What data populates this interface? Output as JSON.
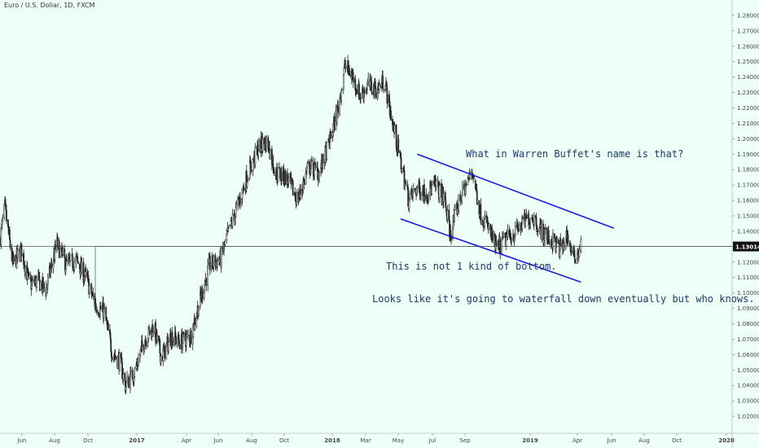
{
  "window": {
    "symbol_title": "Euro / U.S. Dollar, 1D, FXCM"
  },
  "colors": {
    "background": "#eefff7",
    "candle": "#222222",
    "channel": "#1a1adf",
    "price_line": "#333333",
    "price_label_bg": "#111111",
    "price_label_text": "#ffffff",
    "note_text": "#1a3a6e"
  },
  "annotations": {
    "note_top": "What in Warren Buffet's name is that?",
    "note_middle": "This is not 1 kind of bottom.",
    "note_bottom": "Looks like it's going to waterfall down eventually but who knows."
  },
  "chart_data": {
    "type": "candlestick",
    "title": "Euro / U.S. Dollar, 1D, FXCM",
    "xlabel": "",
    "ylabel": "",
    "ylim": [
      1.01,
      1.29
    ],
    "y_scale": "linear",
    "grid": false,
    "current_price": 1.13014,
    "current_price_label": "1.13014",
    "x_tick_labels": [
      "Jun",
      "Aug",
      "Oct",
      "2017",
      "Apr",
      "Jun",
      "Aug",
      "Oct",
      "2018",
      "Mar",
      "May",
      "Jul",
      "Sep",
      "2019",
      "Apr",
      "Jun",
      "Aug",
      "Oct",
      "2020"
    ],
    "y_tick_labels": [
      "1.02000",
      "1.03000",
      "1.04000",
      "1.05000",
      "1.06000",
      "1.07000",
      "1.08000",
      "1.09000",
      "1.10000",
      "1.11000",
      "1.12000",
      "1.13000",
      "1.14000",
      "1.15000",
      "1.16000",
      "1.17000",
      "1.18000",
      "1.19000",
      "1.20000",
      "1.21000",
      "1.22000",
      "1.23000",
      "1.24000",
      "1.25000",
      "1.26000",
      "1.27000",
      "1.28000"
    ],
    "price_path": [
      {
        "x": "2016-05-01",
        "close": 1.135
      },
      {
        "x": "2016-05-10",
        "close": 1.155
      },
      {
        "x": "2016-05-25",
        "close": 1.118
      },
      {
        "x": "2016-06-10",
        "close": 1.128
      },
      {
        "x": "2016-06-25",
        "close": 1.105
      },
      {
        "x": "2016-07-10",
        "close": 1.108
      },
      {
        "x": "2016-07-25",
        "close": 1.102
      },
      {
        "x": "2016-08-15",
        "close": 1.132
      },
      {
        "x": "2016-09-01",
        "close": 1.118
      },
      {
        "x": "2016-09-20",
        "close": 1.121
      },
      {
        "x": "2016-10-10",
        "close": 1.108
      },
      {
        "x": "2016-10-25",
        "close": 1.092
      },
      {
        "x": "2016-11-10",
        "close": 1.088
      },
      {
        "x": "2016-11-25",
        "close": 1.062
      },
      {
        "x": "2016-12-10",
        "close": 1.055
      },
      {
        "x": "2016-12-20",
        "close": 1.04
      },
      {
        "x": "2017-01-05",
        "close": 1.048
      },
      {
        "x": "2017-01-25",
        "close": 1.07
      },
      {
        "x": "2017-02-10",
        "close": 1.078
      },
      {
        "x": "2017-02-25",
        "close": 1.058
      },
      {
        "x": "2017-03-15",
        "close": 1.072
      },
      {
        "x": "2017-04-01",
        "close": 1.068
      },
      {
        "x": "2017-04-20",
        "close": 1.072
      },
      {
        "x": "2017-05-05",
        "close": 1.092
      },
      {
        "x": "2017-05-25",
        "close": 1.118
      },
      {
        "x": "2017-06-15",
        "close": 1.122
      },
      {
        "x": "2017-06-30",
        "close": 1.14
      },
      {
        "x": "2017-07-20",
        "close": 1.16
      },
      {
        "x": "2017-08-05",
        "close": 1.178
      },
      {
        "x": "2017-08-25",
        "close": 1.195
      },
      {
        "x": "2017-09-10",
        "close": 1.198
      },
      {
        "x": "2017-09-25",
        "close": 1.178
      },
      {
        "x": "2017-10-15",
        "close": 1.175
      },
      {
        "x": "2017-11-05",
        "close": 1.16
      },
      {
        "x": "2017-11-25",
        "close": 1.182
      },
      {
        "x": "2017-12-15",
        "close": 1.178
      },
      {
        "x": "2018-01-05",
        "close": 1.2
      },
      {
        "x": "2018-01-20",
        "close": 1.222
      },
      {
        "x": "2018-02-01",
        "close": 1.248
      },
      {
        "x": "2018-02-15",
        "close": 1.24
      },
      {
        "x": "2018-03-01",
        "close": 1.228
      },
      {
        "x": "2018-03-15",
        "close": 1.235
      },
      {
        "x": "2018-04-01",
        "close": 1.232
      },
      {
        "x": "2018-04-15",
        "close": 1.238
      },
      {
        "x": "2018-04-30",
        "close": 1.21
      },
      {
        "x": "2018-05-15",
        "close": 1.185
      },
      {
        "x": "2018-05-30",
        "close": 1.16
      },
      {
        "x": "2018-06-15",
        "close": 1.168
      },
      {
        "x": "2018-07-01",
        "close": 1.165
      },
      {
        "x": "2018-07-20",
        "close": 1.17
      },
      {
        "x": "2018-08-05",
        "close": 1.16
      },
      {
        "x": "2018-08-15",
        "close": 1.138
      },
      {
        "x": "2018-09-01",
        "close": 1.16
      },
      {
        "x": "2018-09-20",
        "close": 1.175
      },
      {
        "x": "2018-09-25",
        "close": 1.18
      },
      {
        "x": "2018-10-10",
        "close": 1.152
      },
      {
        "x": "2018-10-25",
        "close": 1.142
      },
      {
        "x": "2018-11-10",
        "close": 1.128
      },
      {
        "x": "2018-11-25",
        "close": 1.135
      },
      {
        "x": "2018-12-10",
        "close": 1.138
      },
      {
        "x": "2018-12-31",
        "close": 1.146
      },
      {
        "x": "2019-01-15",
        "close": 1.15
      },
      {
        "x": "2019-02-01",
        "close": 1.14
      },
      {
        "x": "2019-02-20",
        "close": 1.134
      },
      {
        "x": "2019-03-10",
        "close": 1.128
      },
      {
        "x": "2019-03-20",
        "close": 1.138
      },
      {
        "x": "2019-04-01",
        "close": 1.122
      },
      {
        "x": "2019-04-15",
        "close": 1.13
      }
    ],
    "trend_lines": [
      {
        "name": "channel-upper",
        "from": {
          "x": "2018-06-15",
          "y": 1.19
        },
        "to": {
          "x": "2019-06-15",
          "y": 1.142
        }
      },
      {
        "name": "channel-lower",
        "from": {
          "x": "2018-05-15",
          "y": 1.148
        },
        "to": {
          "x": "2019-04-15",
          "y": 1.107
        }
      }
    ],
    "horizontal_line": {
      "x_start": "2016-10-25",
      "y": 1.13014
    }
  }
}
